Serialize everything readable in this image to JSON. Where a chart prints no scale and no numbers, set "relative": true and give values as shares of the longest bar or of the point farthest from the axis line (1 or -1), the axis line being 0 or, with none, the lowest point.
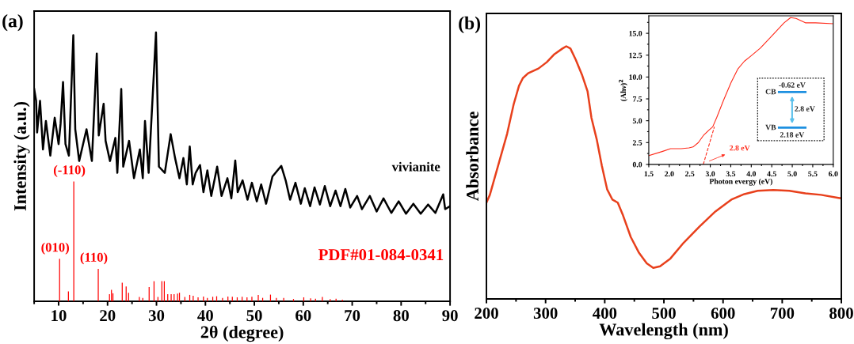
{
  "chart_data": [
    {
      "type": "line",
      "title": "(a)",
      "xlabel": "2θ (degree)",
      "ylabel": "Intensity (a.u.)",
      "relative": true,
      "xlim": [
        5,
        90
      ],
      "xticks": [
        10,
        20,
        30,
        40,
        50,
        60,
        70,
        80,
        90
      ],
      "legend": false,
      "grid": false,
      "series": [
        {
          "name": "vivianite",
          "color": "#000000",
          "x": [
            5.0,
            5.4,
            5.6,
            6.2,
            6.8,
            7.4,
            8.3,
            9.2,
            10.0,
            10.4,
            10.9,
            11.4,
            12.1,
            13.0,
            13.4,
            14.2,
            15.7,
            16.8,
            17.8,
            18.2,
            19.2,
            19.6,
            20.5,
            21.6,
            22.0,
            22.8,
            23.2,
            24.4,
            25.4,
            26.6,
            27.2,
            27.65,
            28.4,
            29.9,
            30.5,
            31.7,
            32.9,
            33.8,
            34.7,
            35.5,
            36.2,
            36.8,
            37.4,
            38.0,
            38.9,
            39.6,
            40.4,
            41.2,
            42.4,
            43.3,
            44.5,
            45.3,
            46.1,
            46.6,
            47.6,
            48.6,
            49.5,
            50.5,
            51.4,
            52.4,
            53.7,
            55.5,
            56.4,
            57.3,
            58.4,
            59.5,
            60.3,
            61.4,
            62.3,
            63.4,
            64.4,
            65.5,
            66.6,
            67.6,
            68.6,
            69.6,
            71.0,
            72.0,
            73.6,
            75.0,
            76.4,
            78.0,
            79.5,
            81.0,
            82.5,
            84.0,
            85.5,
            87.0,
            88.6,
            89.0,
            90.0
          ],
          "values": [
            0.79,
            0.746,
            0.628,
            0.746,
            0.565,
            0.671,
            0.542,
            0.683,
            0.585,
            0.66,
            0.816,
            0.585,
            0.542,
            0.99,
            0.64,
            0.522,
            0.64,
            0.522,
            0.922,
            0.617,
            0.735,
            0.597,
            0.522,
            0.608,
            0.478,
            0.79,
            0.501,
            0.597,
            0.458,
            0.565,
            0.458,
            0.671,
            0.478,
            1.0,
            0.501,
            0.478,
            0.622,
            0.533,
            0.458,
            0.533,
            0.435,
            0.576,
            0.435,
            0.478,
            0.507,
            0.406,
            0.487,
            0.392,
            0.501,
            0.392,
            0.458,
            0.383,
            0.524,
            0.406,
            0.45,
            0.378,
            0.441,
            0.372,
            0.435,
            0.363,
            0.464,
            0.504,
            0.45,
            0.378,
            0.441,
            0.363,
            0.421,
            0.354,
            0.424,
            0.36,
            0.429,
            0.354,
            0.412,
            0.354,
            0.418,
            0.349,
            0.392,
            0.343,
            0.392,
            0.334,
            0.383,
            0.329,
            0.372,
            0.326,
            0.363,
            0.326,
            0.36,
            0.329,
            0.398,
            0.343,
            0.354
          ]
        },
        {
          "name": "PDF#01-084-0341",
          "type": "bar",
          "color": "#ff0000",
          "x": [
            10.2,
            12.0,
            13.1,
            18.1,
            20.4,
            20.8,
            21.1,
            23.0,
            23.8,
            24.3,
            26.5,
            27.2,
            28.5,
            29.5,
            30.3,
            31.1,
            31.6,
            32.3,
            33.0,
            33.6,
            34.3,
            34.7,
            35.8,
            36.8,
            37.5,
            38.5,
            39.6,
            40.4,
            41.5,
            42.3,
            43.5,
            44.6,
            45.5,
            46.5,
            47.5,
            48.5,
            49.5,
            50.8,
            51.7,
            53.3,
            54.5,
            56.0,
            58.0,
            60.1,
            61.5,
            62.5,
            63.9,
            65.5,
            66.7,
            68.0
          ],
          "values": [
            0.158,
            0.037,
            0.446,
            0.121,
            0.027,
            0.043,
            0.03,
            0.069,
            0.055,
            0.032,
            0.016,
            0.013,
            0.053,
            0.075,
            0.016,
            0.075,
            0.075,
            0.027,
            0.027,
            0.027,
            0.029,
            0.032,
            0.016,
            0.024,
            0.021,
            0.015,
            0.018,
            0.013,
            0.017,
            0.019,
            0.013,
            0.018,
            0.017,
            0.015,
            0.017,
            0.015,
            0.017,
            0.024,
            0.013,
            0.025,
            0.013,
            0.013,
            0.0085,
            0.015,
            0.011,
            0.0096,
            0.016,
            0.0085,
            0.0096,
            0.0064
          ]
        }
      ],
      "annotations": [
        {
          "text": "(010)",
          "x": 10.2,
          "y": 0.158
        },
        {
          "text": "(-110)",
          "x": 13.1,
          "y": 0.446
        },
        {
          "text": "(110)",
          "x": 18.1,
          "y": 0.121
        }
      ]
    },
    {
      "type": "line",
      "title": "(b)",
      "xlabel": "Wavelength (nm)",
      "ylabel": "Absorbance",
      "relative": true,
      "xlim": [
        200,
        800
      ],
      "xticks": [
        200,
        300,
        400,
        500,
        600,
        700,
        800
      ],
      "legend": false,
      "grid": false,
      "series": [
        {
          "color": "#e8401c",
          "x": [
            200,
            205.8,
            221,
            235,
            246,
            255,
            261.6,
            270.5,
            288,
            302,
            315,
            328.5,
            335,
            342,
            351,
            362,
            371,
            377.5,
            386.4,
            395,
            404,
            413,
            422,
            431,
            444,
            458,
            471,
            482,
            493.5,
            511,
            533.6,
            560,
            587,
            614,
            636,
            658.5,
            685,
            712,
            739,
            765.6,
            797,
            800
          ],
          "values": [
            0.381,
            0.412,
            0.538,
            0.654,
            0.77,
            0.843,
            0.874,
            0.893,
            0.912,
            0.937,
            0.969,
            0.991,
            1.0,
            0.991,
            0.947,
            0.884,
            0.821,
            0.717,
            0.632,
            0.528,
            0.434,
            0.393,
            0.381,
            0.33,
            0.245,
            0.182,
            0.141,
            0.123,
            0.129,
            0.16,
            0.223,
            0.286,
            0.346,
            0.393,
            0.415,
            0.428,
            0.431,
            0.428,
            0.418,
            0.412,
            0.399,
            0.399
          ]
        }
      ]
    },
    {
      "type": "line",
      "xlabel": "Photon evergy (eV)",
      "ylabel": "(Ahν)$^{2}$",
      "xlim": [
        1.5,
        6.0
      ],
      "ylim": [
        0,
        17
      ],
      "xticks": [
        {
          "value": 1.5,
          "label": "1.5"
        },
        {
          "value": 2.0,
          "label": "2.0"
        },
        {
          "value": 2.5,
          "label": "2.5"
        },
        {
          "value": 3.0,
          "label": "3.0"
        },
        {
          "value": 3.5,
          "label": "3.5"
        },
        {
          "value": 4.0,
          "label": "4.0"
        },
        {
          "value": 4.5,
          "label": "4.5"
        },
        {
          "value": 5.0,
          "label": "5.0"
        },
        {
          "value": 5.5,
          "label": "5.5"
        },
        {
          "value": 6.0,
          "label": "6.0"
        }
      ],
      "yticks": [
        {
          "value": 0,
          "label": "0.0"
        },
        {
          "value": 2.5,
          "label": "2.5"
        },
        {
          "value": 5,
          "label": "5.0"
        },
        {
          "value": 7.5,
          "label": "7.5"
        },
        {
          "value": 10,
          "label": "10.0"
        },
        {
          "value": 12.5,
          "label": "12.5"
        },
        {
          "value": 15,
          "label": "15.0"
        }
      ],
      "legend": false,
      "grid": false,
      "series": [
        {
          "color": "#ff2a1a",
          "line_style": "solid",
          "x": [
            1.5,
            1.84,
            2.03,
            2.29,
            2.48,
            2.58,
            2.71,
            2.83,
            2.96,
            3.06,
            3.16,
            3.32,
            3.51,
            3.67,
            3.83,
            3.99,
            4.22,
            4.48,
            4.8,
            4.96,
            5.09,
            5.32,
            5.57,
            6.0
          ],
          "values": [
            1.0,
            1.5,
            1.8,
            1.8,
            1.9,
            2.0,
            2.5,
            3.3,
            3.9,
            4.3,
            5.4,
            7.3,
            9.4,
            10.9,
            11.8,
            12.4,
            13.3,
            14.6,
            16.2,
            16.8,
            16.7,
            16.2,
            16.2,
            16.1
          ]
        },
        {
          "color": "#ff2a1a",
          "line_style": "dashed",
          "x": [
            2.83,
            3.1
          ],
          "values": [
            0,
            4.3
          ]
        }
      ],
      "annotations": [
        {
          "text": "2.8 eV",
          "x": 2.83,
          "y": 0
        },
        "CB",
        "-0.62 eV",
        "2.8 eV",
        "VB",
        "2.18 eV"
      ]
    }
  ]
}
